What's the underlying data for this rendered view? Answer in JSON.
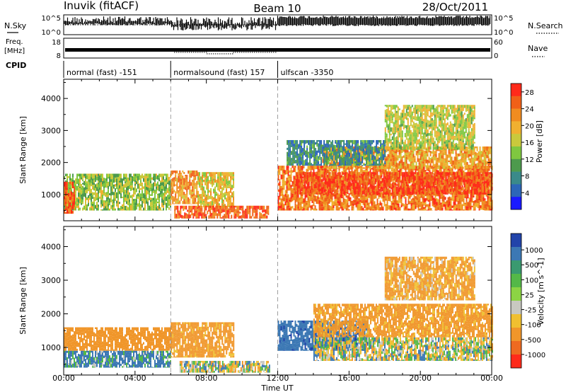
{
  "header": {
    "station": "Inuvik (fitACF)",
    "beam": "Beam 10",
    "date": "28/Oct/2011"
  },
  "summary_panels": {
    "nsky_label": "N.Sky",
    "nsky_ticks": [
      "10^5",
      "10^0"
    ],
    "nsearch_label": "N.Search",
    "nsearch_ticks": [
      "10^5",
      "10^0"
    ],
    "freq_label": "Freq.",
    "freq_unit": "[MHz]",
    "freq_ticks": [
      "18",
      "8"
    ],
    "nave_label": "Nave",
    "nave_ticks": [
      "60",
      "0"
    ],
    "cpid_label": "CPID"
  },
  "cpid_segments": [
    {
      "start_hour": 0,
      "end_hour": 6,
      "label": "normal (fast) -151"
    },
    {
      "start_hour": 6,
      "end_hour": 12,
      "label": "normalsound (fast) 157"
    },
    {
      "start_hour": 12,
      "end_hour": 24,
      "label": "ulfscan -3350"
    }
  ],
  "chart_data": [
    {
      "type": "heatmap",
      "title": "",
      "xlabel": "Time UT",
      "ylabel": "Slant Range [km]",
      "x_ticks": [
        "00:00",
        "04:00",
        "08:00",
        "12:00",
        "16:00",
        "20:00",
        "00:00"
      ],
      "x_range_hours": [
        0,
        24
      ],
      "y_ticks": [
        1000,
        2000,
        3000,
        4000
      ],
      "ylim": [
        180,
        4600
      ],
      "colorbar_label": "Power [dB]",
      "colorbar_ticks": [
        4,
        8,
        12,
        16,
        20,
        24,
        28
      ],
      "colorbar_range": [
        0,
        30
      ],
      "colorbar_colors": [
        "#1a1aff",
        "#2c66b8",
        "#3a8a8a",
        "#4d9a4d",
        "#7fc740",
        "#c9c93c",
        "#f0b030",
        "#f08c20",
        "#f06018",
        "#ff2a1a"
      ],
      "mode_change_hours": [
        6,
        12
      ],
      "regions": [
        {
          "t0": 0.0,
          "t1": 6.0,
          "r0": 500,
          "r1": 1650,
          "value": 14
        },
        {
          "t0": 0.0,
          "t1": 0.6,
          "r0": 400,
          "r1": 1400,
          "value": 26
        },
        {
          "t0": 6.0,
          "t1": 7.5,
          "r0": 700,
          "r1": 1750,
          "value": 22
        },
        {
          "t0": 7.5,
          "t1": 9.5,
          "r0": 600,
          "r1": 1700,
          "value": 18
        },
        {
          "t0": 6.2,
          "t1": 11.5,
          "r0": 250,
          "r1": 650,
          "value": 26
        },
        {
          "t0": 12.0,
          "t1": 24.0,
          "r0": 500,
          "r1": 1900,
          "value": 24
        },
        {
          "t0": 13.0,
          "t1": 24.0,
          "r0": 1000,
          "r1": 1700,
          "value": 27
        },
        {
          "t0": 14.5,
          "t1": 24.0,
          "r0": 1800,
          "r1": 2500,
          "value": 21
        },
        {
          "t0": 12.5,
          "t1": 18.0,
          "r0": 1900,
          "r1": 2700,
          "value": 8
        },
        {
          "t0": 18.0,
          "t1": 23.0,
          "r0": 2400,
          "r1": 3800,
          "value": 16
        }
      ]
    },
    {
      "type": "heatmap",
      "title": "",
      "xlabel": "Time UT",
      "ylabel": "Slant Range [km]",
      "x_ticks": [
        "00:00",
        "04:00",
        "08:00",
        "12:00",
        "16:00",
        "20:00",
        "00:00"
      ],
      "x_range_hours": [
        0,
        24
      ],
      "y_ticks": [
        1000,
        2000,
        3000,
        4000
      ],
      "ylim": [
        180,
        4600
      ],
      "colorbar_label": "Velocity [m s^-1]",
      "colorbar_ticks": [
        "1000",
        "500",
        "100",
        "25",
        "-25",
        "-100",
        "-500",
        "-1000"
      ],
      "colorbar_colors": [
        "#2244aa",
        "#3c78b4",
        "#3a9a70",
        "#54b848",
        "#8cd444",
        "#c8c8c0",
        "#f0c030",
        "#f0962a",
        "#ee6a20",
        "#ff2a1a"
      ],
      "mode_change_hours": [
        6,
        12
      ],
      "regions": [
        {
          "t0": 0.0,
          "t1": 6.0,
          "r0": 900,
          "r1": 1600,
          "value": -300
        },
        {
          "t0": 0.0,
          "t1": 6.0,
          "r0": 400,
          "r1": 900,
          "value": 150
        },
        {
          "t0": 6.0,
          "t1": 9.5,
          "r0": 700,
          "r1": 1750,
          "value": -200
        },
        {
          "t0": 6.5,
          "t1": 11.5,
          "r0": 250,
          "r1": 600,
          "value": 0
        },
        {
          "t0": 12.0,
          "t1": 17.0,
          "r0": 900,
          "r1": 1800,
          "value": 400
        },
        {
          "t0": 14.0,
          "t1": 24.0,
          "r0": 1300,
          "r1": 2300,
          "value": -200
        },
        {
          "t0": 14.0,
          "t1": 24.0,
          "r0": 600,
          "r1": 1300,
          "value": 0
        },
        {
          "t0": 18.0,
          "t1": 23.0,
          "r0": 2400,
          "r1": 3700,
          "value": -150
        }
      ]
    }
  ]
}
